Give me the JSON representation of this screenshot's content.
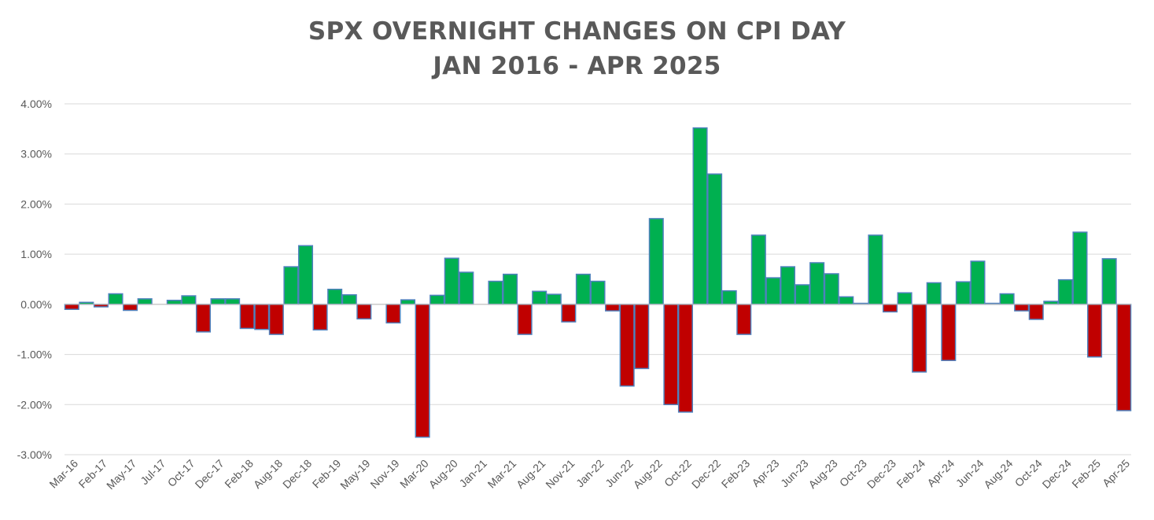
{
  "chart_data": {
    "type": "bar",
    "title_line1": "SPX OVERNIGHT CHANGES ON CPI DAY",
    "title_line2": "JAN 2016 - APR 2025",
    "xlabel": "",
    "ylabel": "",
    "ylim": [
      -3.0,
      4.0
    ],
    "yticks": [
      4.0,
      3.0,
      2.0,
      1.0,
      0.0,
      -1.0,
      -2.0,
      -3.0
    ],
    "ytick_labels": [
      "4.00%",
      "3.00%",
      "2.00%",
      "1.00%",
      "0.00%",
      "-1.00%",
      "-2.00%",
      "-3.00%"
    ],
    "xtick_labels": [
      "Mar-16",
      "Feb-17",
      "May-17",
      "Jul-17",
      "Oct-17",
      "Dec-17",
      "Feb-18",
      "Aug-18",
      "Dec-18",
      "Feb-19",
      "May-19",
      "Nov-19",
      "Mar-20",
      "Aug-20",
      "Jan-21",
      "Mar-21",
      "Aug-21",
      "Nov-21",
      "Jan-22",
      "Jun-22",
      "Aug-22",
      "Oct-22",
      "Dec-22",
      "Feb-23",
      "Apr-23",
      "Jun-23",
      "Aug-23",
      "Oct-23",
      "Dec-23",
      "Feb-24",
      "Apr-24",
      "Jun-24",
      "Aug-24",
      "Oct-24",
      "Dec-24",
      "Feb-25",
      "Apr-25"
    ],
    "grid": true,
    "positive_color": "#00b050",
    "negative_color": "#c00000",
    "bar_edge_color": "#4f81bd",
    "values": [
      -0.1,
      0.04,
      -0.05,
      0.21,
      -0.12,
      0.11,
      0.0,
      0.08,
      0.17,
      -0.55,
      0.11,
      0.11,
      -0.48,
      -0.5,
      -0.6,
      0.75,
      1.17,
      -0.51,
      0.3,
      0.19,
      -0.29,
      0.0,
      -0.37,
      0.09,
      -2.65,
      0.18,
      0.92,
      0.64,
      0.0,
      0.46,
      0.6,
      -0.6,
      0.26,
      0.2,
      -0.35,
      0.6,
      0.46,
      -0.13,
      -1.63,
      -1.28,
      1.71,
      -2.0,
      -2.15,
      3.52,
      2.6,
      0.27,
      -0.6,
      1.38,
      0.53,
      0.75,
      0.39,
      0.83,
      0.61,
      0.15,
      0.02,
      1.38,
      -0.15,
      0.23,
      -1.35,
      0.43,
      -1.12,
      0.45,
      0.86,
      0.02,
      0.21,
      -0.13,
      -0.3,
      0.06,
      0.49,
      1.44,
      -1.05,
      0.91,
      -2.12
    ]
  }
}
